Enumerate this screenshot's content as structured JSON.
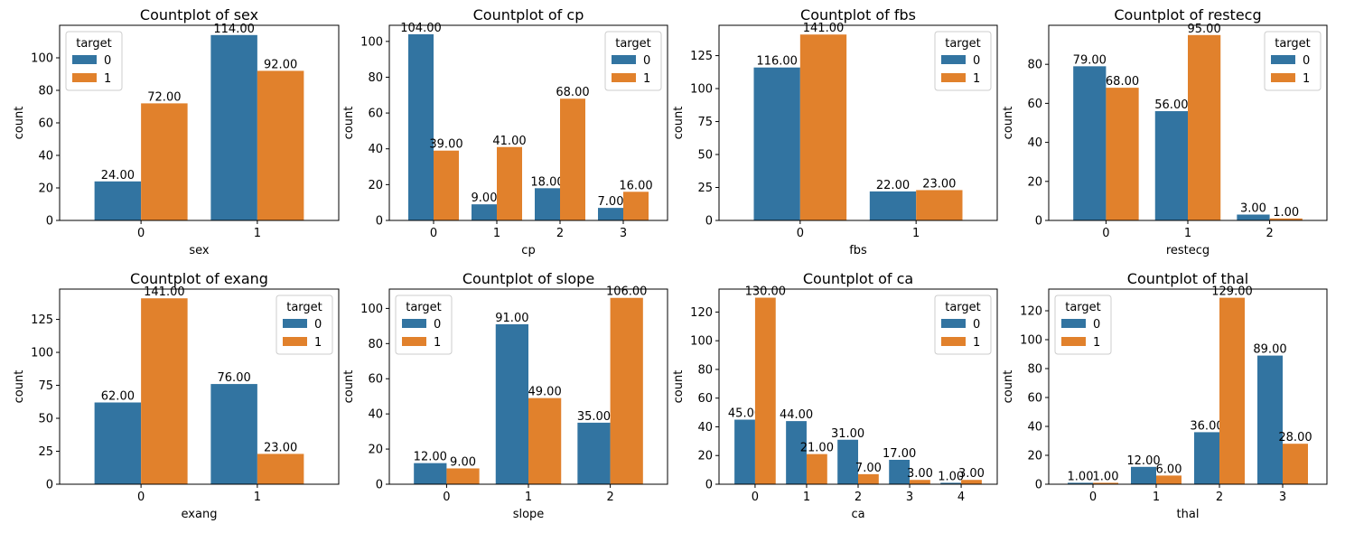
{
  "legend_title": "target",
  "colors": {
    "0": "#3274a1",
    "1": "#e1812c"
  },
  "ylabel": "count",
  "chart_data": [
    {
      "type": "bar",
      "title": "Countplot of sex",
      "xlabel": "sex",
      "ylabel": "count",
      "categories": [
        "0",
        "1"
      ],
      "ylim": [
        0,
        120
      ],
      "yticks": [
        0,
        20,
        40,
        60,
        80,
        100
      ],
      "legend": "top-left",
      "legend_title": "target",
      "series": [
        {
          "name": "0",
          "values": [
            24,
            114
          ],
          "labels": [
            "24.00",
            "114.00"
          ]
        },
        {
          "name": "1",
          "values": [
            72,
            92
          ],
          "labels": [
            "72.00",
            "92.00"
          ]
        }
      ]
    },
    {
      "type": "bar",
      "title": "Countplot of cp",
      "xlabel": "cp",
      "ylabel": "count",
      "categories": [
        "0",
        "1",
        "2",
        "3"
      ],
      "ylim": [
        0,
        109
      ],
      "yticks": [
        0,
        20,
        40,
        60,
        80,
        100
      ],
      "legend": "top-right",
      "legend_title": "target",
      "series": [
        {
          "name": "0",
          "values": [
            104,
            9,
            18,
            7
          ],
          "labels": [
            "104.00",
            "9.00",
            "18.00",
            "7.00"
          ]
        },
        {
          "name": "1",
          "values": [
            39,
            41,
            68,
            16
          ],
          "labels": [
            "39.00",
            "41.00",
            "68.00",
            "16.00"
          ]
        }
      ]
    },
    {
      "type": "bar",
      "title": "Countplot of fbs",
      "xlabel": "fbs",
      "ylabel": "count",
      "categories": [
        "0",
        "1"
      ],
      "ylim": [
        0,
        148
      ],
      "yticks": [
        0,
        25,
        50,
        75,
        100,
        125
      ],
      "legend": "top-right",
      "legend_title": "target",
      "series": [
        {
          "name": "0",
          "values": [
            116,
            22
          ],
          "labels": [
            "116.00",
            "22.00"
          ]
        },
        {
          "name": "1",
          "values": [
            141,
            23
          ],
          "labels": [
            "141.00",
            "23.00"
          ]
        }
      ]
    },
    {
      "type": "bar",
      "title": "Countplot of restecg",
      "xlabel": "restecg",
      "ylabel": "count",
      "categories": [
        "0",
        "1",
        "2"
      ],
      "ylim": [
        0,
        100
      ],
      "yticks": [
        0,
        20,
        40,
        60,
        80
      ],
      "legend": "top-right",
      "legend_title": "target",
      "series": [
        {
          "name": "0",
          "values": [
            79,
            56,
            3
          ],
          "labels": [
            "79.00",
            "56.00",
            "3.00"
          ]
        },
        {
          "name": "1",
          "values": [
            68,
            95,
            1
          ],
          "labels": [
            "68.00",
            "95.00",
            "1.00"
          ]
        }
      ]
    },
    {
      "type": "bar",
      "title": "Countplot of exang",
      "xlabel": "exang",
      "ylabel": "count",
      "categories": [
        "0",
        "1"
      ],
      "ylim": [
        0,
        148
      ],
      "yticks": [
        0,
        25,
        50,
        75,
        100,
        125
      ],
      "legend": "top-right",
      "legend_title": "target",
      "series": [
        {
          "name": "0",
          "values": [
            62,
            76
          ],
          "labels": [
            "62.00",
            "76.00"
          ]
        },
        {
          "name": "1",
          "values": [
            141,
            23
          ],
          "labels": [
            "141.00",
            "23.00"
          ]
        }
      ]
    },
    {
      "type": "bar",
      "title": "Countplot of slope",
      "xlabel": "slope",
      "ylabel": "count",
      "categories": [
        "0",
        "1",
        "2"
      ],
      "ylim": [
        0,
        111
      ],
      "yticks": [
        0,
        20,
        40,
        60,
        80,
        100
      ],
      "legend": "top-left",
      "legend_title": "target",
      "series": [
        {
          "name": "0",
          "values": [
            12,
            91,
            35
          ],
          "labels": [
            "12.00",
            "91.00",
            "35.00"
          ]
        },
        {
          "name": "1",
          "values": [
            9,
            49,
            106
          ],
          "labels": [
            "9.00",
            "49.00",
            "106.00"
          ]
        }
      ]
    },
    {
      "type": "bar",
      "title": "Countplot of ca",
      "xlabel": "ca",
      "ylabel": "count",
      "categories": [
        "0",
        "1",
        "2",
        "3",
        "4"
      ],
      "ylim": [
        0,
        136
      ],
      "yticks": [
        0,
        20,
        40,
        60,
        80,
        100,
        120
      ],
      "legend": "top-right",
      "legend_title": "target",
      "series": [
        {
          "name": "0",
          "values": [
            45,
            44,
            31,
            17,
            1
          ],
          "labels": [
            "45.00",
            "44.00",
            "31.00",
            "17.00",
            "1.00"
          ]
        },
        {
          "name": "1",
          "values": [
            130,
            21,
            7,
            3,
            3
          ],
          "labels": [
            "130.00",
            "21.00",
            "7.00",
            "3.00",
            "3.00"
          ]
        }
      ]
    },
    {
      "type": "bar",
      "title": "Countplot of thal",
      "xlabel": "thal",
      "ylabel": "count",
      "categories": [
        "0",
        "1",
        "2",
        "3"
      ],
      "ylim": [
        0,
        135
      ],
      "yticks": [
        0,
        20,
        40,
        60,
        80,
        100,
        120
      ],
      "legend": "top-left",
      "legend_title": "target",
      "series": [
        {
          "name": "0",
          "values": [
            1,
            12,
            36,
            89
          ],
          "labels": [
            "1.00",
            "12.00",
            "36.00",
            "89.00"
          ]
        },
        {
          "name": "1",
          "values": [
            1,
            6,
            129,
            28
          ],
          "labels": [
            "1.00",
            "6.00",
            "129.00",
            "28.00"
          ]
        }
      ]
    }
  ]
}
